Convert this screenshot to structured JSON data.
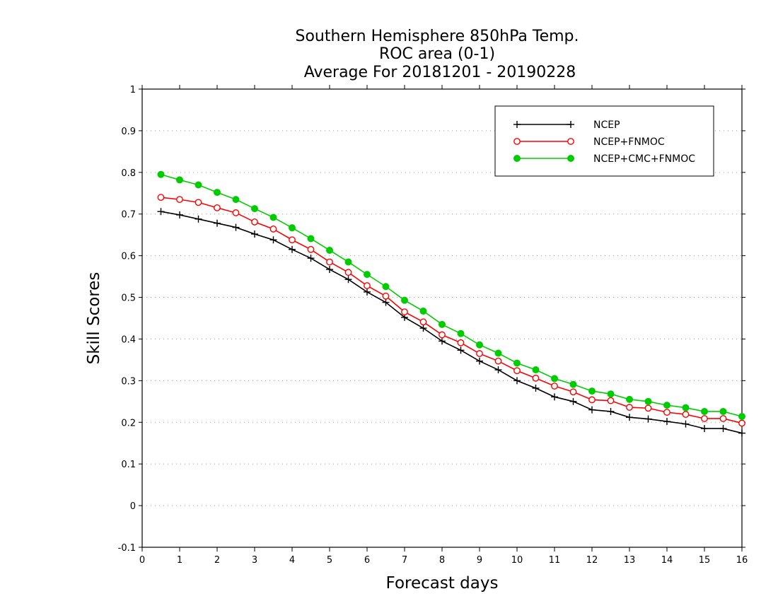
{
  "chart_data": {
    "type": "line",
    "title_lines": [
      "Southern Hemisphere 850hPa Temp.",
      "ROC area (0-1)",
      "Average For 20181201 - 20190228"
    ],
    "xlabel": "Forecast days",
    "ylabel": "Skill Scores",
    "xlim": [
      0,
      16
    ],
    "ylim": [
      -0.1,
      1
    ],
    "x_ticks": [
      "0",
      "1",
      "2",
      "3",
      "4",
      "5",
      "6",
      "7",
      "8",
      "9",
      "10",
      "11",
      "12",
      "13",
      "14",
      "15",
      "16"
    ],
    "y_ticks": [
      "-0.1",
      "0",
      "0.1",
      "0.2",
      "0.3",
      "0.4",
      "0.5",
      "0.6",
      "0.7",
      "0.8",
      "0.9",
      "1"
    ],
    "grid": true,
    "legend_position": "top-right",
    "x": [
      0.5,
      1,
      1.5,
      2,
      2.5,
      3,
      3.5,
      4,
      4.5,
      5,
      5.5,
      6,
      6.5,
      7,
      7.5,
      8,
      8.5,
      9,
      9.5,
      10,
      10.5,
      11,
      11.5,
      12,
      12.5,
      13,
      13.5,
      14,
      14.5,
      15,
      15.5,
      16
    ],
    "series": [
      {
        "name": "NCEP",
        "color": "#000000",
        "marker": "plus",
        "values": [
          0.706,
          0.698,
          0.688,
          0.678,
          0.668,
          0.652,
          0.638,
          0.615,
          0.594,
          0.567,
          0.543,
          0.513,
          0.488,
          0.452,
          0.426,
          0.395,
          0.373,
          0.347,
          0.326,
          0.3,
          0.282,
          0.261,
          0.25,
          0.23,
          0.226,
          0.212,
          0.208,
          0.202,
          0.196,
          0.185,
          0.185,
          0.174
        ]
      },
      {
        "name": "NCEP+FNMOC",
        "color": "#ff0000",
        "marker": "open-circle",
        "values": [
          0.74,
          0.735,
          0.728,
          0.715,
          0.703,
          0.681,
          0.664,
          0.638,
          0.615,
          0.585,
          0.56,
          0.528,
          0.503,
          0.465,
          0.441,
          0.41,
          0.391,
          0.365,
          0.347,
          0.324,
          0.306,
          0.287,
          0.273,
          0.254,
          0.252,
          0.236,
          0.234,
          0.224,
          0.219,
          0.209,
          0.209,
          0.198
        ]
      },
      {
        "name": "NCEP+CMC+FNMOC",
        "color": "#00cc00",
        "marker": "filled-circle",
        "values": [
          0.795,
          0.782,
          0.77,
          0.752,
          0.735,
          0.713,
          0.692,
          0.667,
          0.641,
          0.613,
          0.585,
          0.555,
          0.526,
          0.493,
          0.467,
          0.435,
          0.413,
          0.386,
          0.366,
          0.342,
          0.326,
          0.305,
          0.291,
          0.275,
          0.268,
          0.255,
          0.25,
          0.241,
          0.235,
          0.226,
          0.226,
          0.214
        ]
      }
    ]
  }
}
